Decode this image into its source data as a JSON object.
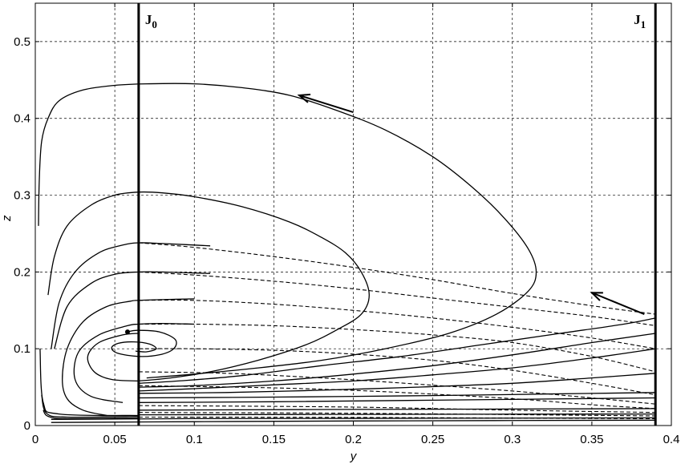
{
  "chart_data": {
    "type": "line",
    "title": "",
    "xlabel": "y",
    "ylabel": "z",
    "xlim": [
      0,
      0.4
    ],
    "ylim": [
      0,
      0.55
    ],
    "grid": true,
    "x_ticks": [
      0,
      0.05,
      0.1,
      0.15,
      0.2,
      0.25,
      0.3,
      0.35,
      0.4
    ],
    "x_tick_labels": [
      "0",
      "0.05",
      "0.1",
      "0.15",
      "0.2",
      "0.25",
      "0.3",
      "0.35",
      "0.4"
    ],
    "y_ticks": [
      0,
      0.1,
      0.2,
      0.3,
      0.4,
      0.5
    ],
    "y_tick_labels": [
      "0",
      "0.1",
      "0.2",
      "0.3",
      "0.4",
      "0.5"
    ],
    "vertical_lines": [
      {
        "label_main": "J",
        "label_sub": "0",
        "x": 0.065
      },
      {
        "label_main": "J",
        "label_sub": "1",
        "x": 0.39
      }
    ],
    "equilibrium_point": {
      "x": 0.058,
      "y": 0.122
    },
    "arrows": [
      {
        "from": [
          0.2,
          0.408
        ],
        "to": [
          0.166,
          0.43
        ]
      },
      {
        "from": [
          0.383,
          0.145
        ],
        "to": [
          0.35,
          0.173
        ]
      }
    ],
    "solid_trajectories": [
      [
        [
          0.002,
          0.26
        ],
        [
          0.0025,
          0.32
        ],
        [
          0.004,
          0.37
        ],
        [
          0.008,
          0.4
        ],
        [
          0.015,
          0.423
        ],
        [
          0.03,
          0.437
        ],
        [
          0.05,
          0.443
        ],
        [
          0.07,
          0.445
        ],
        [
          0.1,
          0.445
        ],
        [
          0.13,
          0.44
        ],
        [
          0.16,
          0.43
        ],
        [
          0.19,
          0.41
        ],
        [
          0.22,
          0.385
        ],
        [
          0.25,
          0.35
        ],
        [
          0.275,
          0.31
        ],
        [
          0.295,
          0.27
        ],
        [
          0.31,
          0.23
        ],
        [
          0.315,
          0.2
        ],
        [
          0.31,
          0.175
        ],
        [
          0.29,
          0.145
        ],
        [
          0.26,
          0.12
        ],
        [
          0.22,
          0.1
        ],
        [
          0.18,
          0.085
        ],
        [
          0.14,
          0.075
        ],
        [
          0.1,
          0.067
        ],
        [
          0.07,
          0.062
        ]
      ],
      [
        [
          0.008,
          0.17
        ],
        [
          0.012,
          0.22
        ],
        [
          0.02,
          0.26
        ],
        [
          0.035,
          0.287
        ],
        [
          0.05,
          0.3
        ],
        [
          0.065,
          0.304
        ],
        [
          0.08,
          0.303
        ],
        [
          0.1,
          0.298
        ],
        [
          0.13,
          0.285
        ],
        [
          0.16,
          0.265
        ],
        [
          0.18,
          0.245
        ],
        [
          0.195,
          0.225
        ],
        [
          0.205,
          0.2
        ],
        [
          0.21,
          0.17
        ],
        [
          0.205,
          0.145
        ],
        [
          0.19,
          0.125
        ],
        [
          0.17,
          0.105
        ],
        [
          0.14,
          0.085
        ],
        [
          0.11,
          0.07
        ],
        [
          0.085,
          0.062
        ],
        [
          0.065,
          0.058
        ]
      ],
      [
        [
          0.01,
          0.1
        ],
        [
          0.015,
          0.16
        ],
        [
          0.025,
          0.2
        ],
        [
          0.04,
          0.225
        ],
        [
          0.055,
          0.235
        ],
        [
          0.065,
          0.238
        ],
        [
          0.08,
          0.237
        ],
        [
          0.11,
          0.234
        ]
      ],
      [
        [
          0.012,
          0.1
        ],
        [
          0.02,
          0.155
        ],
        [
          0.035,
          0.185
        ],
        [
          0.05,
          0.197
        ],
        [
          0.065,
          0.2
        ],
        [
          0.08,
          0.2
        ],
        [
          0.11,
          0.198
        ]
      ],
      [
        [
          0.045,
          0.013
        ],
        [
          0.03,
          0.02
        ],
        [
          0.02,
          0.035
        ],
        [
          0.017,
          0.06
        ],
        [
          0.02,
          0.1
        ],
        [
          0.03,
          0.135
        ],
        [
          0.045,
          0.155
        ],
        [
          0.06,
          0.162
        ],
        [
          0.065,
          0.163
        ],
        [
          0.08,
          0.164
        ],
        [
          0.1,
          0.165
        ]
      ],
      [
        [
          0.055,
          0.03
        ],
        [
          0.035,
          0.038
        ],
        [
          0.025,
          0.06
        ],
        [
          0.027,
          0.095
        ],
        [
          0.04,
          0.118
        ],
        [
          0.058,
          0.13
        ],
        [
          0.065,
          0.132
        ],
        [
          0.08,
          0.133
        ],
        [
          0.1,
          0.132
        ]
      ],
      [
        [
          0.065,
          0.058
        ],
        [
          0.048,
          0.06
        ],
        [
          0.037,
          0.07
        ],
        [
          0.033,
          0.09
        ],
        [
          0.04,
          0.108
        ],
        [
          0.055,
          0.118
        ],
        [
          0.065,
          0.12
        ]
      ],
      [
        [
          0.058,
          0.122
        ],
        [
          0.064,
          0.124
        ],
        [
          0.078,
          0.122
        ],
        [
          0.088,
          0.112
        ],
        [
          0.087,
          0.1
        ],
        [
          0.078,
          0.092
        ],
        [
          0.065,
          0.09
        ],
        [
          0.052,
          0.094
        ],
        [
          0.048,
          0.101
        ],
        [
          0.052,
          0.107
        ],
        [
          0.062,
          0.109
        ],
        [
          0.072,
          0.106
        ],
        [
          0.076,
          0.1
        ],
        [
          0.07,
          0.096
        ],
        [
          0.063,
          0.097
        ]
      ],
      [
        [
          0.065,
          0.055
        ],
        [
          0.09,
          0.058
        ],
        [
          0.13,
          0.065
        ],
        [
          0.18,
          0.078
        ],
        [
          0.23,
          0.09
        ],
        [
          0.28,
          0.105
        ],
        [
          0.33,
          0.12
        ],
        [
          0.37,
          0.132
        ],
        [
          0.39,
          0.14
        ]
      ],
      [
        [
          0.065,
          0.05
        ],
        [
          0.1,
          0.052
        ],
        [
          0.15,
          0.058
        ],
        [
          0.2,
          0.067
        ],
        [
          0.25,
          0.078
        ],
        [
          0.3,
          0.092
        ],
        [
          0.35,
          0.108
        ],
        [
          0.39,
          0.12
        ]
      ],
      [
        [
          0.065,
          0.045
        ],
        [
          0.1,
          0.048
        ],
        [
          0.15,
          0.053
        ],
        [
          0.2,
          0.058
        ],
        [
          0.25,
          0.066
        ],
        [
          0.3,
          0.075
        ],
        [
          0.35,
          0.088
        ],
        [
          0.39,
          0.1
        ]
      ],
      [
        [
          0.065,
          0.042
        ],
        [
          0.12,
          0.043
        ],
        [
          0.18,
          0.046
        ],
        [
          0.24,
          0.05
        ],
        [
          0.3,
          0.055
        ],
        [
          0.35,
          0.062
        ],
        [
          0.39,
          0.068
        ]
      ],
      [
        [
          0.065,
          0.036
        ],
        [
          0.15,
          0.037
        ],
        [
          0.25,
          0.039
        ],
        [
          0.32,
          0.041
        ],
        [
          0.39,
          0.043
        ]
      ],
      [
        [
          0.065,
          0.03
        ],
        [
          0.15,
          0.031
        ],
        [
          0.25,
          0.033
        ],
        [
          0.39,
          0.036
        ]
      ],
      [
        [
          0.065,
          0.02
        ],
        [
          0.2,
          0.021
        ],
        [
          0.39,
          0.022
        ]
      ],
      [
        [
          0.065,
          0.014
        ],
        [
          0.2,
          0.0145
        ],
        [
          0.39,
          0.015
        ]
      ],
      [
        [
          0.01,
          0.004
        ],
        [
          0.1,
          0.005
        ],
        [
          0.2,
          0.006
        ],
        [
          0.39,
          0.007
        ]
      ],
      [
        [
          0.01,
          0.008
        ],
        [
          0.1,
          0.009
        ],
        [
          0.25,
          0.0095
        ],
        [
          0.39,
          0.01
        ]
      ],
      [
        [
          0.005,
          0.02
        ],
        [
          0.008,
          0.012
        ],
        [
          0.02,
          0.009
        ],
        [
          0.065,
          0.01
        ]
      ],
      [
        [
          0.004,
          0.04
        ],
        [
          0.007,
          0.016
        ],
        [
          0.02,
          0.011
        ],
        [
          0.065,
          0.012
        ]
      ],
      [
        [
          0.003,
          0.1
        ],
        [
          0.005,
          0.03
        ],
        [
          0.015,
          0.015
        ],
        [
          0.065,
          0.013
        ]
      ]
    ],
    "dashed_trajectories": [
      [
        [
          0.065,
          0.238
        ],
        [
          0.1,
          0.232
        ],
        [
          0.15,
          0.22
        ],
        [
          0.2,
          0.206
        ],
        [
          0.25,
          0.19
        ],
        [
          0.3,
          0.172
        ],
        [
          0.35,
          0.156
        ],
        [
          0.39,
          0.145
        ]
      ],
      [
        [
          0.065,
          0.2
        ],
        [
          0.1,
          0.196
        ],
        [
          0.15,
          0.188
        ],
        [
          0.2,
          0.178
        ],
        [
          0.25,
          0.166
        ],
        [
          0.3,
          0.154
        ],
        [
          0.35,
          0.142
        ],
        [
          0.39,
          0.13
        ]
      ],
      [
        [
          0.065,
          0.163
        ],
        [
          0.1,
          0.163
        ],
        [
          0.15,
          0.158
        ],
        [
          0.2,
          0.15
        ],
        [
          0.25,
          0.14
        ],
        [
          0.3,
          0.128
        ],
        [
          0.35,
          0.114
        ],
        [
          0.39,
          0.1
        ]
      ],
      [
        [
          0.065,
          0.132
        ],
        [
          0.1,
          0.132
        ],
        [
          0.15,
          0.13
        ],
        [
          0.2,
          0.125
        ],
        [
          0.25,
          0.118
        ],
        [
          0.3,
          0.108
        ],
        [
          0.35,
          0.09
        ],
        [
          0.39,
          0.07
        ]
      ],
      [
        [
          0.065,
          0.1
        ],
        [
          0.1,
          0.1
        ],
        [
          0.15,
          0.098
        ],
        [
          0.2,
          0.093
        ],
        [
          0.25,
          0.085
        ],
        [
          0.3,
          0.072
        ],
        [
          0.35,
          0.055
        ],
        [
          0.39,
          0.04
        ]
      ],
      [
        [
          0.065,
          0.07
        ],
        [
          0.12,
          0.068
        ],
        [
          0.18,
          0.062
        ],
        [
          0.24,
          0.054
        ],
        [
          0.3,
          0.045
        ],
        [
          0.35,
          0.036
        ],
        [
          0.39,
          0.028
        ]
      ],
      [
        [
          0.065,
          0.052
        ],
        [
          0.15,
          0.049
        ],
        [
          0.22,
          0.044
        ],
        [
          0.3,
          0.035
        ],
        [
          0.35,
          0.027
        ],
        [
          0.39,
          0.022
        ]
      ],
      [
        [
          0.065,
          0.026
        ],
        [
          0.2,
          0.024
        ],
        [
          0.3,
          0.02
        ],
        [
          0.39,
          0.017
        ]
      ],
      [
        [
          0.065,
          0.017
        ],
        [
          0.2,
          0.016
        ],
        [
          0.39,
          0.0125
        ]
      ],
      [
        [
          0.065,
          0.011
        ],
        [
          0.2,
          0.0105
        ],
        [
          0.39,
          0.009
        ]
      ]
    ]
  }
}
